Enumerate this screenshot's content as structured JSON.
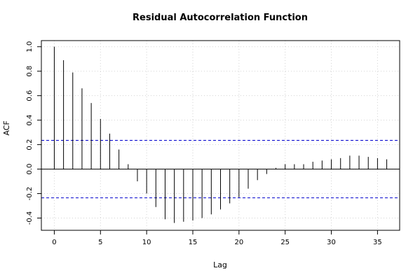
{
  "chart_data": {
    "type": "bar",
    "title": "Residual Autocorrelation Function",
    "xlabel": "Lag",
    "ylabel": "ACF",
    "xlim": [
      -1.4,
      37.4
    ],
    "ylim": [
      -0.5,
      1.05
    ],
    "x_ticks": [
      0,
      5,
      10,
      15,
      20,
      25,
      30,
      35
    ],
    "y_ticks": [
      -0.4,
      -0.2,
      0.0,
      0.2,
      0.4,
      0.6,
      0.8,
      1.0
    ],
    "x_tick_labels": [
      "0",
      "5",
      "10",
      "15",
      "20",
      "25",
      "30",
      "35"
    ],
    "y_tick_labels": [
      "-0.4",
      "-0.2",
      "0.0",
      "0.2",
      "0.4",
      "0.6",
      "0.8",
      "1.0"
    ],
    "grid": true,
    "confidence_bounds": [
      0.235,
      -0.235
    ],
    "lags": [
      0,
      1,
      2,
      3,
      4,
      5,
      6,
      7,
      8,
      9,
      10,
      11,
      12,
      13,
      14,
      15,
      16,
      17,
      18,
      19,
      20,
      21,
      22,
      23,
      24,
      25,
      26,
      27,
      28,
      29,
      30,
      31,
      32,
      33,
      34,
      35,
      36
    ],
    "values": [
      1.0,
      0.89,
      0.79,
      0.66,
      0.54,
      0.41,
      0.29,
      0.16,
      0.04,
      -0.1,
      -0.2,
      -0.31,
      -0.41,
      -0.44,
      -0.43,
      -0.42,
      -0.4,
      -0.37,
      -0.33,
      -0.28,
      -0.23,
      -0.16,
      -0.09,
      -0.04,
      0.01,
      0.04,
      0.04,
      0.04,
      0.06,
      0.07,
      0.08,
      0.09,
      0.11,
      0.11,
      0.1,
      0.09,
      0.08
    ]
  },
  "colors": {
    "bar": "#000000",
    "bound": "#0000cc",
    "grid": "#d3d3d3",
    "zero_line": "#000000"
  }
}
